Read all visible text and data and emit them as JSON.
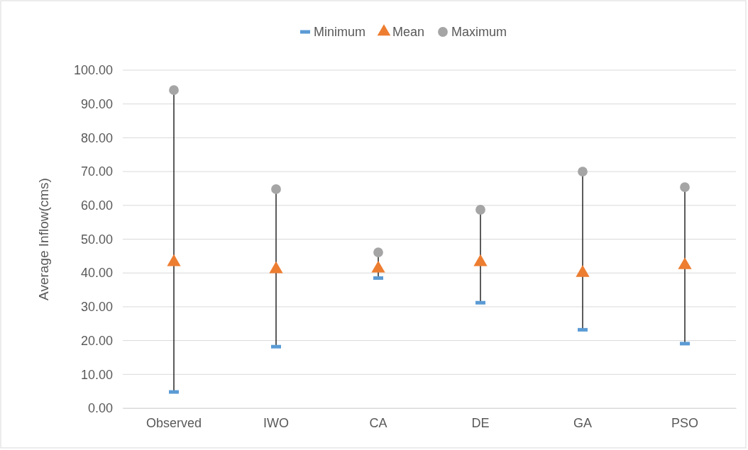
{
  "chart_data": {
    "type": "scatter",
    "ylabel": "Average Inflow(cms)",
    "categories": [
      "Observed",
      "IWO",
      "CA",
      "DE",
      "GA",
      "PSO"
    ],
    "series": [
      {
        "name": "Minimum",
        "color": "#5b9bd5",
        "marker": "square",
        "values": [
          4.8,
          18.2,
          38.5,
          31.2,
          23.2,
          19.1
        ]
      },
      {
        "name": "Mean",
        "color": "#ed7d31",
        "marker": "triangle",
        "values": [
          43.2,
          41.1,
          41.3,
          43.2,
          40.0,
          42.3
        ]
      },
      {
        "name": "Maximum",
        "color": "#a5a5a5",
        "marker": "circle",
        "values": [
          94.1,
          64.8,
          46.1,
          58.7,
          70.0,
          65.4
        ]
      }
    ],
    "ylim": [
      0,
      100
    ],
    "yticks": [
      {
        "value": 0,
        "label": "0.00"
      },
      {
        "value": 10,
        "label": "10.00"
      },
      {
        "value": 20,
        "label": "20.00"
      },
      {
        "value": 30,
        "label": "30.00"
      },
      {
        "value": 40,
        "label": "40.00"
      },
      {
        "value": 50,
        "label": "50.00"
      },
      {
        "value": 60,
        "label": "60.00"
      },
      {
        "value": 70,
        "label": "70.00"
      },
      {
        "value": 80,
        "label": "80.00"
      },
      {
        "value": 90,
        "label": "90.00"
      },
      {
        "value": 100,
        "label": "100.00"
      }
    ],
    "grid": "y",
    "legend": "top"
  }
}
